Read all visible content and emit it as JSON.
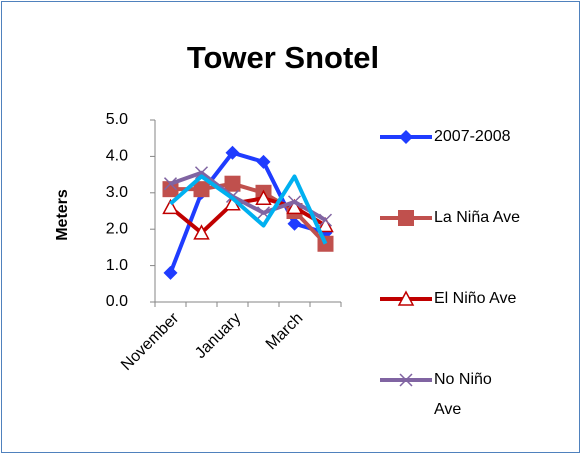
{
  "chart_data": {
    "type": "line",
    "title": "Tower Snotel",
    "y_label": "Meters",
    "categories": [
      "November",
      null,
      "January",
      null,
      "March",
      null
    ],
    "ylim": [
      0,
      5
    ],
    "yticks": [
      {
        "value": 0,
        "label": "0.0"
      },
      {
        "value": 1,
        "label": "1.0"
      },
      {
        "value": 2,
        "label": "2.0"
      },
      {
        "value": 3,
        "label": "3.0"
      },
      {
        "value": 4,
        "label": "4.0"
      },
      {
        "value": 5,
        "label": "5.0"
      }
    ],
    "legend": "right",
    "series": [
      {
        "name": "2007-2008",
        "color": "#1f3cff",
        "marker": "diamond",
        "values": [
          0.8,
          3.0,
          4.1,
          3.85,
          2.15,
          1.9
        ]
      },
      {
        "name": "La Niña Ave",
        "color": "#c0504d",
        "marker": "square",
        "values": [
          3.1,
          3.1,
          3.25,
          3.0,
          2.5,
          1.6
        ]
      },
      {
        "name": "El Niño Ave",
        "color": "#c00000",
        "marker": "triangle",
        "values": [
          2.6,
          1.9,
          2.7,
          2.85,
          2.6,
          2.1
        ]
      },
      {
        "name": "No Niño Ave",
        "color": "#8064a2",
        "marker": "x",
        "values": [
          3.25,
          3.55,
          2.9,
          2.45,
          2.75,
          2.25
        ]
      },
      {
        "color": "#00b0f0",
        "marker": "none",
        "values": [
          2.7,
          3.45,
          2.85,
          2.1,
          3.45,
          1.6
        ]
      }
    ]
  }
}
